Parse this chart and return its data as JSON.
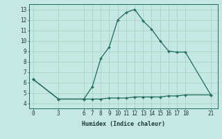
{
  "xlabel": "Humidex (Indice chaleur)",
  "background_color": "#c6e8e2",
  "grid_color": "#aed4cc",
  "line_color": "#1a6b5e",
  "x_ticks": [
    0,
    3,
    6,
    7,
    8,
    9,
    10,
    11,
    12,
    13,
    14,
    15,
    16,
    17,
    18,
    21
  ],
  "y_ticks": [
    4,
    5,
    6,
    7,
    8,
    9,
    10,
    11,
    12,
    13
  ],
  "xlim": [
    -0.5,
    21.8
  ],
  "ylim": [
    3.5,
    13.5
  ],
  "line1_x": [
    0,
    3,
    6,
    7,
    8,
    9,
    10,
    11,
    12,
    13,
    14,
    15,
    16,
    17,
    18,
    21
  ],
  "line1_y": [
    6.3,
    4.4,
    4.4,
    5.6,
    8.3,
    9.4,
    12.0,
    12.7,
    13.0,
    11.9,
    11.1,
    10.0,
    9.0,
    8.9,
    8.9,
    4.8
  ],
  "line2_x": [
    0,
    3,
    6,
    7,
    8,
    9,
    10,
    11,
    12,
    13,
    14,
    15,
    16,
    17,
    18,
    21
  ],
  "line2_y": [
    6.3,
    4.4,
    4.4,
    4.4,
    4.4,
    4.5,
    4.5,
    4.5,
    4.6,
    4.6,
    4.6,
    4.6,
    4.7,
    4.7,
    4.8,
    4.8
  ],
  "tick_fontsize": 5.5,
  "label_fontsize": 6.0
}
